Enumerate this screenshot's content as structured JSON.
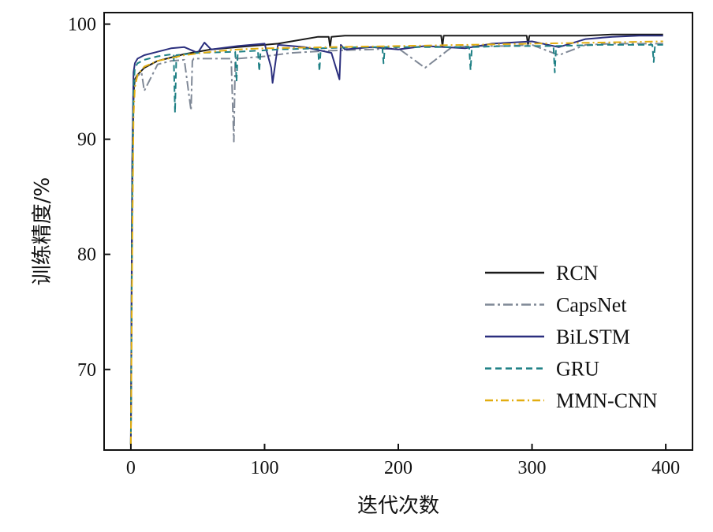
{
  "chart_data": {
    "type": "line",
    "xlabel": "迭代次数",
    "ylabel": "训练精度/%",
    "xlim": [
      -20,
      420
    ],
    "ylim": [
      63,
      101
    ],
    "xticks": [
      0,
      100,
      200,
      300,
      400
    ],
    "yticks": [
      70,
      80,
      90,
      100
    ],
    "legend_position": "bottom-right",
    "grid": false,
    "series": [
      {
        "name": "RCN",
        "color": "#1a1a1a",
        "dash": "solid",
        "x": [
          0,
          1,
          2,
          3,
          5,
          10,
          20,
          40,
          60,
          80,
          100,
          110,
          120,
          130,
          140,
          148,
          149,
          150,
          160,
          180,
          200,
          220,
          232,
          233,
          234,
          250,
          270,
          296,
          297,
          298,
          320,
          340,
          360,
          380,
          398
        ],
        "y": [
          63.5,
          85,
          94,
          95.2,
          95.6,
          96.2,
          96.8,
          97.4,
          97.8,
          98.0,
          98.2,
          98.3,
          98.5,
          98.7,
          98.9,
          98.9,
          98.0,
          98.9,
          99.0,
          99.0,
          99.0,
          99.0,
          99.0,
          98.1,
          99.0,
          99.0,
          99.0,
          99.0,
          98.2,
          99.0,
          99.0,
          99.0,
          99.1,
          99.1,
          99.1
        ]
      },
      {
        "name": "CapsNet",
        "color": "#7f8896",
        "dash": "12,4,3,4",
        "x": [
          0,
          1,
          2,
          3,
          5,
          8,
          10,
          20,
          30,
          40,
          45,
          46,
          47,
          60,
          75,
          77,
          78,
          79,
          80,
          100,
          120,
          150,
          180,
          200,
          220,
          240,
          260,
          280,
          300,
          320,
          340,
          360,
          380,
          398
        ],
        "y": [
          63.5,
          84,
          93,
          95.0,
          95.5,
          95.8,
          94.2,
          96.5,
          96.8,
          96.9,
          92.5,
          96.8,
          97.0,
          97.0,
          97.0,
          89.8,
          96.8,
          97.2,
          97.0,
          97.2,
          97.5,
          97.7,
          97.8,
          97.9,
          96.2,
          98.0,
          98.1,
          98.1,
          98.2,
          97.3,
          98.2,
          98.3,
          98.3,
          98.3
        ]
      },
      {
        "name": "BiLSTM",
        "color": "#2b2f7e",
        "dash": "solid",
        "x": [
          0,
          1,
          2,
          3,
          5,
          10,
          20,
          30,
          40,
          50,
          55,
          60,
          80,
          100,
          105,
          106,
          110,
          130,
          150,
          156,
          157,
          160,
          180,
          200,
          220,
          250,
          270,
          300,
          320,
          340,
          360,
          380,
          398
        ],
        "y": [
          63.5,
          88,
          95.8,
          96.6,
          97.0,
          97.3,
          97.6,
          97.9,
          98.0,
          97.5,
          98.4,
          97.8,
          98.1,
          98.3,
          96.2,
          94.9,
          98.2,
          98.0,
          97.5,
          95.2,
          98.2,
          97.8,
          98.0,
          97.8,
          98.1,
          97.9,
          98.3,
          98.5,
          98.0,
          98.7,
          98.9,
          99.0,
          99.0
        ]
      },
      {
        "name": "GRU",
        "color": "#1f8085",
        "dash": "8,5",
        "x": [
          0,
          1,
          2,
          3,
          5,
          10,
          20,
          32,
          33,
          34,
          50,
          78,
          79,
          80,
          95,
          96,
          97,
          110,
          140,
          141,
          142,
          170,
          188,
          189,
          190,
          220,
          253,
          254,
          255,
          280,
          316,
          317,
          318,
          350,
          390,
          391,
          392,
          398
        ],
        "y": [
          63.5,
          86,
          94.5,
          96.2,
          96.6,
          96.9,
          97.2,
          97.4,
          92.3,
          97.3,
          97.5,
          97.6,
          95.0,
          97.6,
          97.7,
          95.9,
          97.7,
          97.8,
          97.9,
          95.9,
          97.9,
          98.0,
          98.0,
          96.6,
          98.0,
          98.0,
          98.0,
          96.0,
          98.0,
          98.1,
          98.1,
          95.8,
          98.1,
          98.2,
          98.2,
          96.7,
          98.2,
          98.2
        ]
      },
      {
        "name": "MMN-CNN",
        "color": "#e2ad10",
        "dash": "10,4,2,4",
        "x": [
          0,
          1,
          2,
          3,
          5,
          10,
          20,
          40,
          60,
          80,
          100,
          150,
          200,
          250,
          300,
          350,
          398
        ],
        "y": [
          63.5,
          80,
          92,
          94.5,
          95.6,
          96.3,
          96.8,
          97.3,
          97.6,
          97.8,
          97.9,
          98.0,
          98.1,
          98.2,
          98.3,
          98.4,
          98.5
        ]
      }
    ]
  }
}
